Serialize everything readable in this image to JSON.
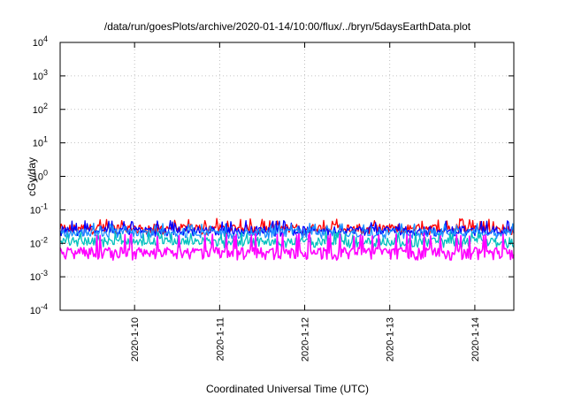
{
  "chart_data": {
    "type": "line",
    "title": "/data/run/goesPlots/archive/2020-01-14/10:00/flux/../bryn/5daysEarthData.plot",
    "xlabel": "Coordinated Universal Time (UTC)",
    "ylabel": "cGy/day",
    "yscale": "log",
    "ylim": [
      0.0001,
      10000
    ],
    "xlim": [
      "2020-01-09T03:00",
      "2020-01-14T11:00"
    ],
    "grid": true,
    "x_ticks": [
      {
        "label": "2020-1-10",
        "value": "2020-01-10T00:00"
      },
      {
        "label": "2020-1-11",
        "value": "2020-01-11T00:00"
      },
      {
        "label": "2020-1-12",
        "value": "2020-01-12T00:00"
      },
      {
        "label": "2020-1-13",
        "value": "2020-01-13T00:00"
      },
      {
        "label": "2020-1-14",
        "value": "2020-01-14T00:00"
      }
    ],
    "y_ticks": [
      {
        "base": "10",
        "exp": "-4",
        "value": 0.0001
      },
      {
        "base": "10",
        "exp": "-3",
        "value": 0.001
      },
      {
        "base": "10",
        "exp": "-2",
        "value": 0.01
      },
      {
        "base": "10",
        "exp": "-1",
        "value": 0.1
      },
      {
        "base": "10",
        "exp": "0",
        "value": 1
      },
      {
        "base": "10",
        "exp": "1",
        "value": 10
      },
      {
        "base": "10",
        "exp": "2",
        "value": 100
      },
      {
        "base": "10",
        "exp": "3",
        "value": 1000
      },
      {
        "base": "10",
        "exp": "4",
        "value": 10000
      }
    ],
    "series": [
      {
        "color": "#ff0000",
        "typical": 0.03,
        "peak": 0.055,
        "low": 0.02
      },
      {
        "color": "#0000ff",
        "typical": 0.026,
        "peak": 0.048,
        "low": 0.018
      },
      {
        "color": "#1e90ff",
        "typical": 0.022,
        "peak": 0.04,
        "low": 0.015
      },
      {
        "color": "#00c0c0",
        "typical": 0.012,
        "peak": 0.022,
        "low": 0.008
      },
      {
        "color": "#ff00ff",
        "typical": 0.006,
        "peak": 0.02,
        "low": 0.0035
      }
    ]
  }
}
